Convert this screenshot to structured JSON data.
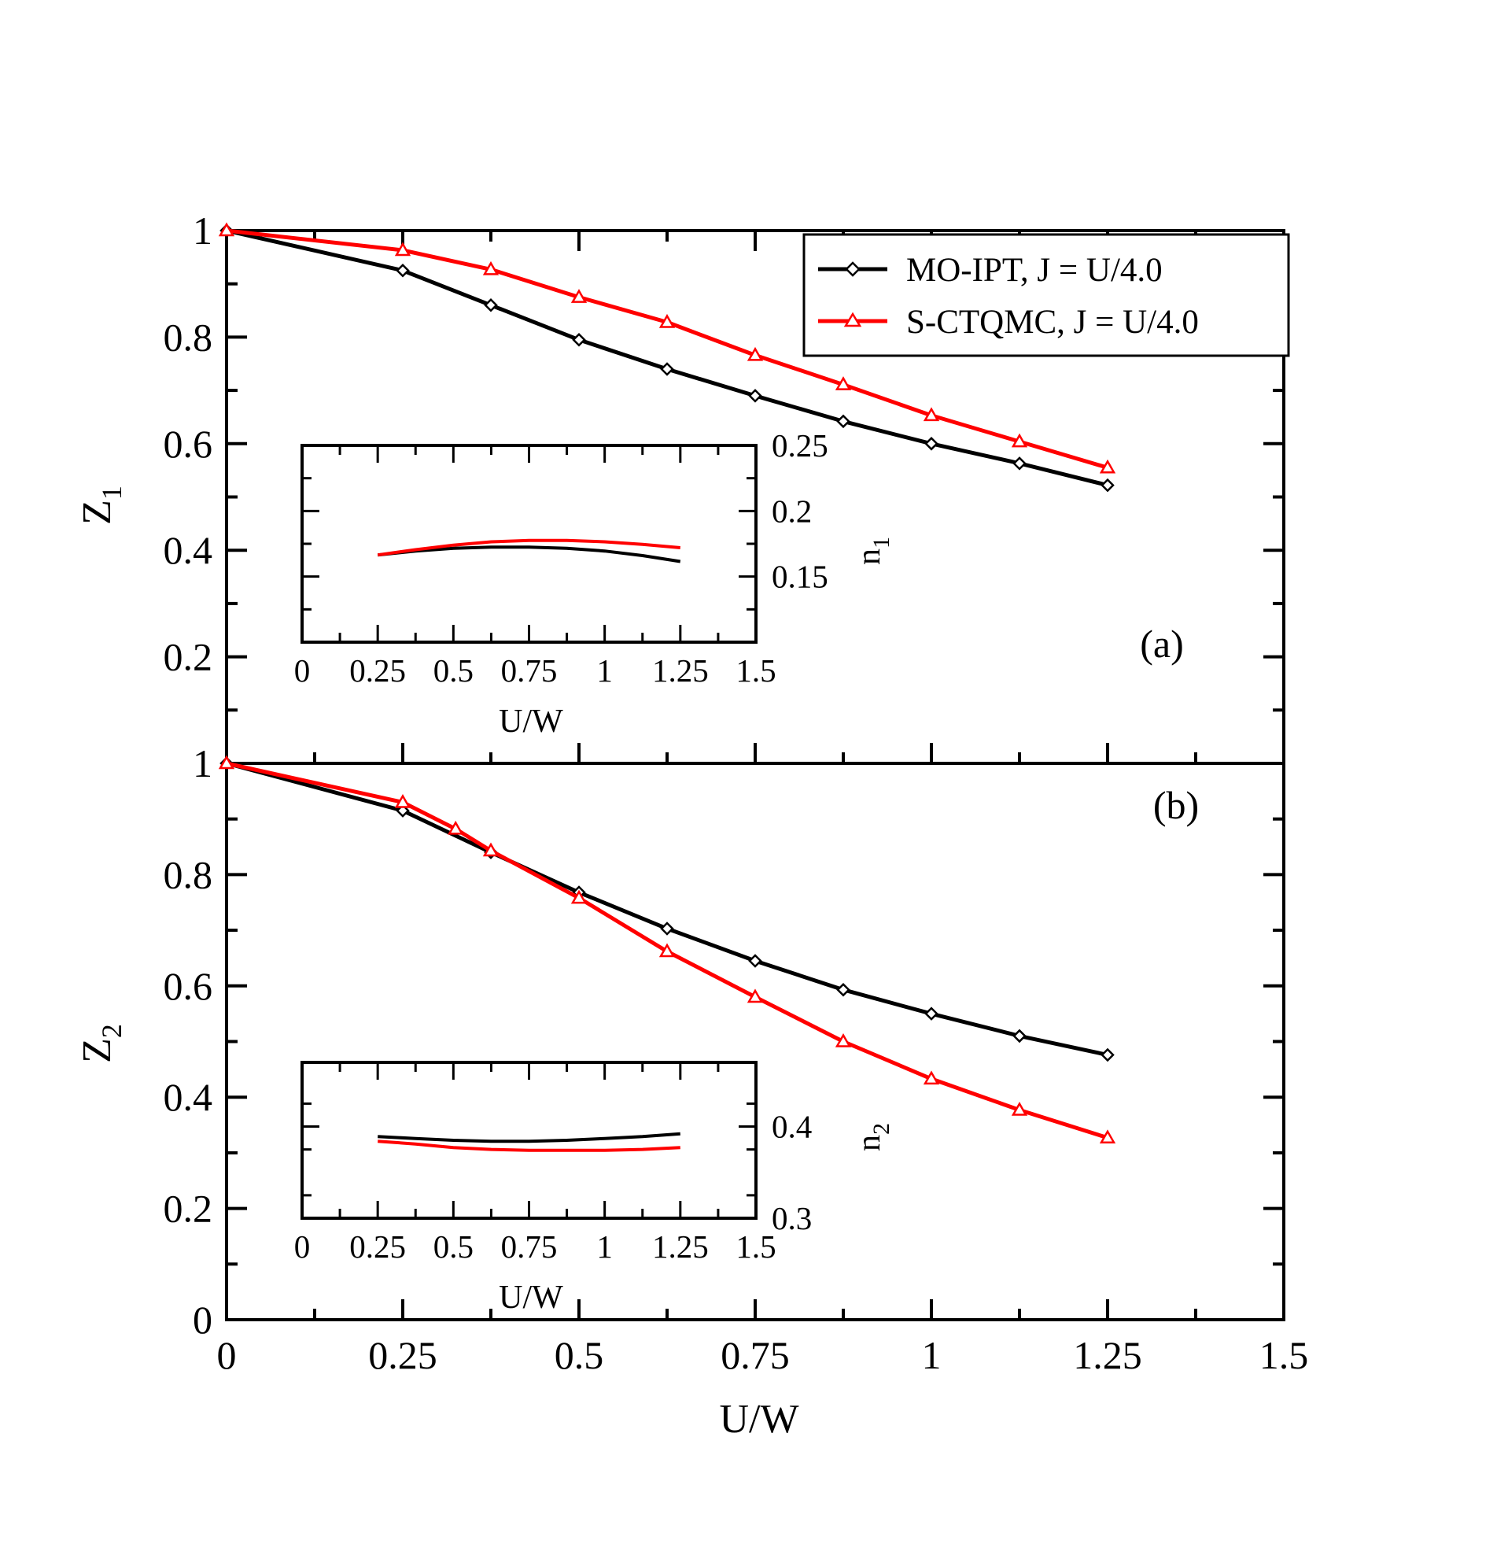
{
  "chart_data": [
    {
      "panel": "a",
      "type": "line",
      "annotation": "(a)",
      "xlabel": "",
      "ylabel": "Z",
      "ylabel_subscript": "1",
      "xlim": [
        0,
        1.5
      ],
      "ylim": [
        0,
        1
      ],
      "xticks": [
        0,
        0.25,
        0.5,
        0.75,
        1,
        1.25,
        1.5
      ],
      "yticks": [
        0.2,
        0.4,
        0.6,
        0.8,
        1
      ],
      "ytick_labels": [
        "0.2",
        "0.4",
        "0.6",
        "0.8",
        "1"
      ],
      "legend": {
        "placement": "top-right",
        "entries": [
          {
            "label": "MO-IPT, J = U/4.0",
            "color": "#000000",
            "marker": "diamond"
          },
          {
            "label": "S-CTQMC, J = U/4.0",
            "color": "#ff0000",
            "marker": "triangle"
          }
        ]
      },
      "series": [
        {
          "name": "MO-IPT, J = U/4.0",
          "color": "#000000",
          "marker": "diamond",
          "x": [
            0,
            0.25,
            0.375,
            0.5,
            0.625,
            0.75,
            0.875,
            1.0,
            1.125,
            1.25
          ],
          "y": [
            1.0,
            0.925,
            0.86,
            0.795,
            0.74,
            0.69,
            0.642,
            0.6,
            0.563,
            0.522
          ]
        },
        {
          "name": "S-CTQMC, J = U/4.0",
          "color": "#ff0000",
          "marker": "triangle",
          "x": [
            0,
            0.25,
            0.375,
            0.5,
            0.625,
            0.75,
            0.875,
            1.0,
            1.125,
            1.25
          ],
          "y": [
            1.0,
            0.963,
            0.927,
            0.875,
            0.828,
            0.766,
            0.711,
            0.653,
            0.604,
            0.555
          ]
        }
      ],
      "inset": {
        "type": "line",
        "xlabel": "U/W",
        "ylabel": "n",
        "ylabel_subscript": "1",
        "xlim": [
          0,
          1.5
        ],
        "ylim": [
          0.1,
          0.25
        ],
        "xticks": [
          0,
          0.25,
          0.5,
          0.75,
          1,
          1.25,
          1.5
        ],
        "xtick_labels": [
          "0",
          "0.25",
          "0.5",
          "0.75",
          "1",
          "1.25",
          "1.5"
        ],
        "yticks": [
          0.15,
          0.2,
          0.25
        ],
        "ytick_labels": [
          "0.15",
          "0.2",
          "0.25"
        ],
        "series": [
          {
            "name": "MO-IPT",
            "color": "#000000",
            "x": [
              0.25,
              0.375,
              0.5,
              0.625,
              0.75,
              0.875,
              1.0,
              1.125,
              1.25
            ],
            "y": [
              0.1665,
              0.1695,
              0.1715,
              0.1725,
              0.1725,
              0.1715,
              0.1695,
              0.166,
              0.1615
            ]
          },
          {
            "name": "S-CTQMC",
            "color": "#ff0000",
            "x": [
              0.25,
              0.375,
              0.5,
              0.625,
              0.75,
              0.875,
              1.0,
              1.125,
              1.25
            ],
            "y": [
              0.1665,
              0.1705,
              0.174,
              0.1765,
              0.1775,
              0.1775,
              0.1765,
              0.1745,
              0.172
            ]
          }
        ]
      }
    },
    {
      "panel": "b",
      "type": "line",
      "annotation": "(b)",
      "xlabel": "U/W",
      "ylabel": "Z",
      "ylabel_subscript": "2",
      "xlim": [
        0,
        1.5
      ],
      "ylim": [
        0,
        1
      ],
      "xticks": [
        0,
        0.25,
        0.5,
        0.75,
        1,
        1.25,
        1.5
      ],
      "xtick_labels": [
        "0",
        "0.25",
        "0.5",
        "0.75",
        "1",
        "1.25",
        "1.5"
      ],
      "yticks": [
        0,
        0.2,
        0.4,
        0.6,
        0.8,
        1
      ],
      "ytick_labels": [
        "0",
        "0.2",
        "0.4",
        "0.6",
        "0.8",
        "1"
      ],
      "series": [
        {
          "name": "MO-IPT, J = U/4.0",
          "color": "#000000",
          "marker": "diamond",
          "x": [
            0,
            0.25,
            0.375,
            0.5,
            0.625,
            0.75,
            0.875,
            1.0,
            1.125,
            1.25
          ],
          "y": [
            1.0,
            0.915,
            0.84,
            0.768,
            0.703,
            0.645,
            0.593,
            0.55,
            0.51,
            0.476
          ]
        },
        {
          "name": "S-CTQMC, J = U/4.0",
          "color": "#ff0000",
          "marker": "triangle",
          "x": [
            0,
            0.25,
            0.325,
            0.375,
            0.5,
            0.625,
            0.75,
            0.875,
            1.0,
            1.125,
            1.25
          ],
          "y": [
            1.0,
            0.93,
            0.882,
            0.843,
            0.758,
            0.662,
            0.58,
            0.5,
            0.433,
            0.377,
            0.327
          ]
        }
      ],
      "inset": {
        "type": "line",
        "xlabel": "U/W",
        "ylabel": "n",
        "ylabel_subscript": "2",
        "xlim": [
          0,
          1.5
        ],
        "ylim": [
          0.3,
          0.47
        ],
        "xticks": [
          0,
          0.25,
          0.5,
          0.75,
          1,
          1.25,
          1.5
        ],
        "xtick_labels": [
          "0",
          "0.25",
          "0.5",
          "0.75",
          "1",
          "1.25",
          "1.5"
        ],
        "yticks": [
          0.3,
          0.4
        ],
        "ytick_labels": [
          "0.3",
          "0.4"
        ],
        "series": [
          {
            "name": "MO-IPT",
            "color": "#000000",
            "x": [
              0.25,
              0.375,
              0.5,
              0.625,
              0.75,
              0.875,
              1.0,
              1.125,
              1.25
            ],
            "y": [
              0.389,
              0.387,
              0.385,
              0.384,
              0.384,
              0.385,
              0.387,
              0.389,
              0.392
            ]
          },
          {
            "name": "S-CTQMC",
            "color": "#ff0000",
            "x": [
              0.25,
              0.375,
              0.5,
              0.625,
              0.75,
              0.875,
              1.0,
              1.125,
              1.25
            ],
            "y": [
              0.384,
              0.381,
              0.377,
              0.375,
              0.374,
              0.374,
              0.374,
              0.375,
              0.377
            ]
          }
        ]
      }
    }
  ]
}
